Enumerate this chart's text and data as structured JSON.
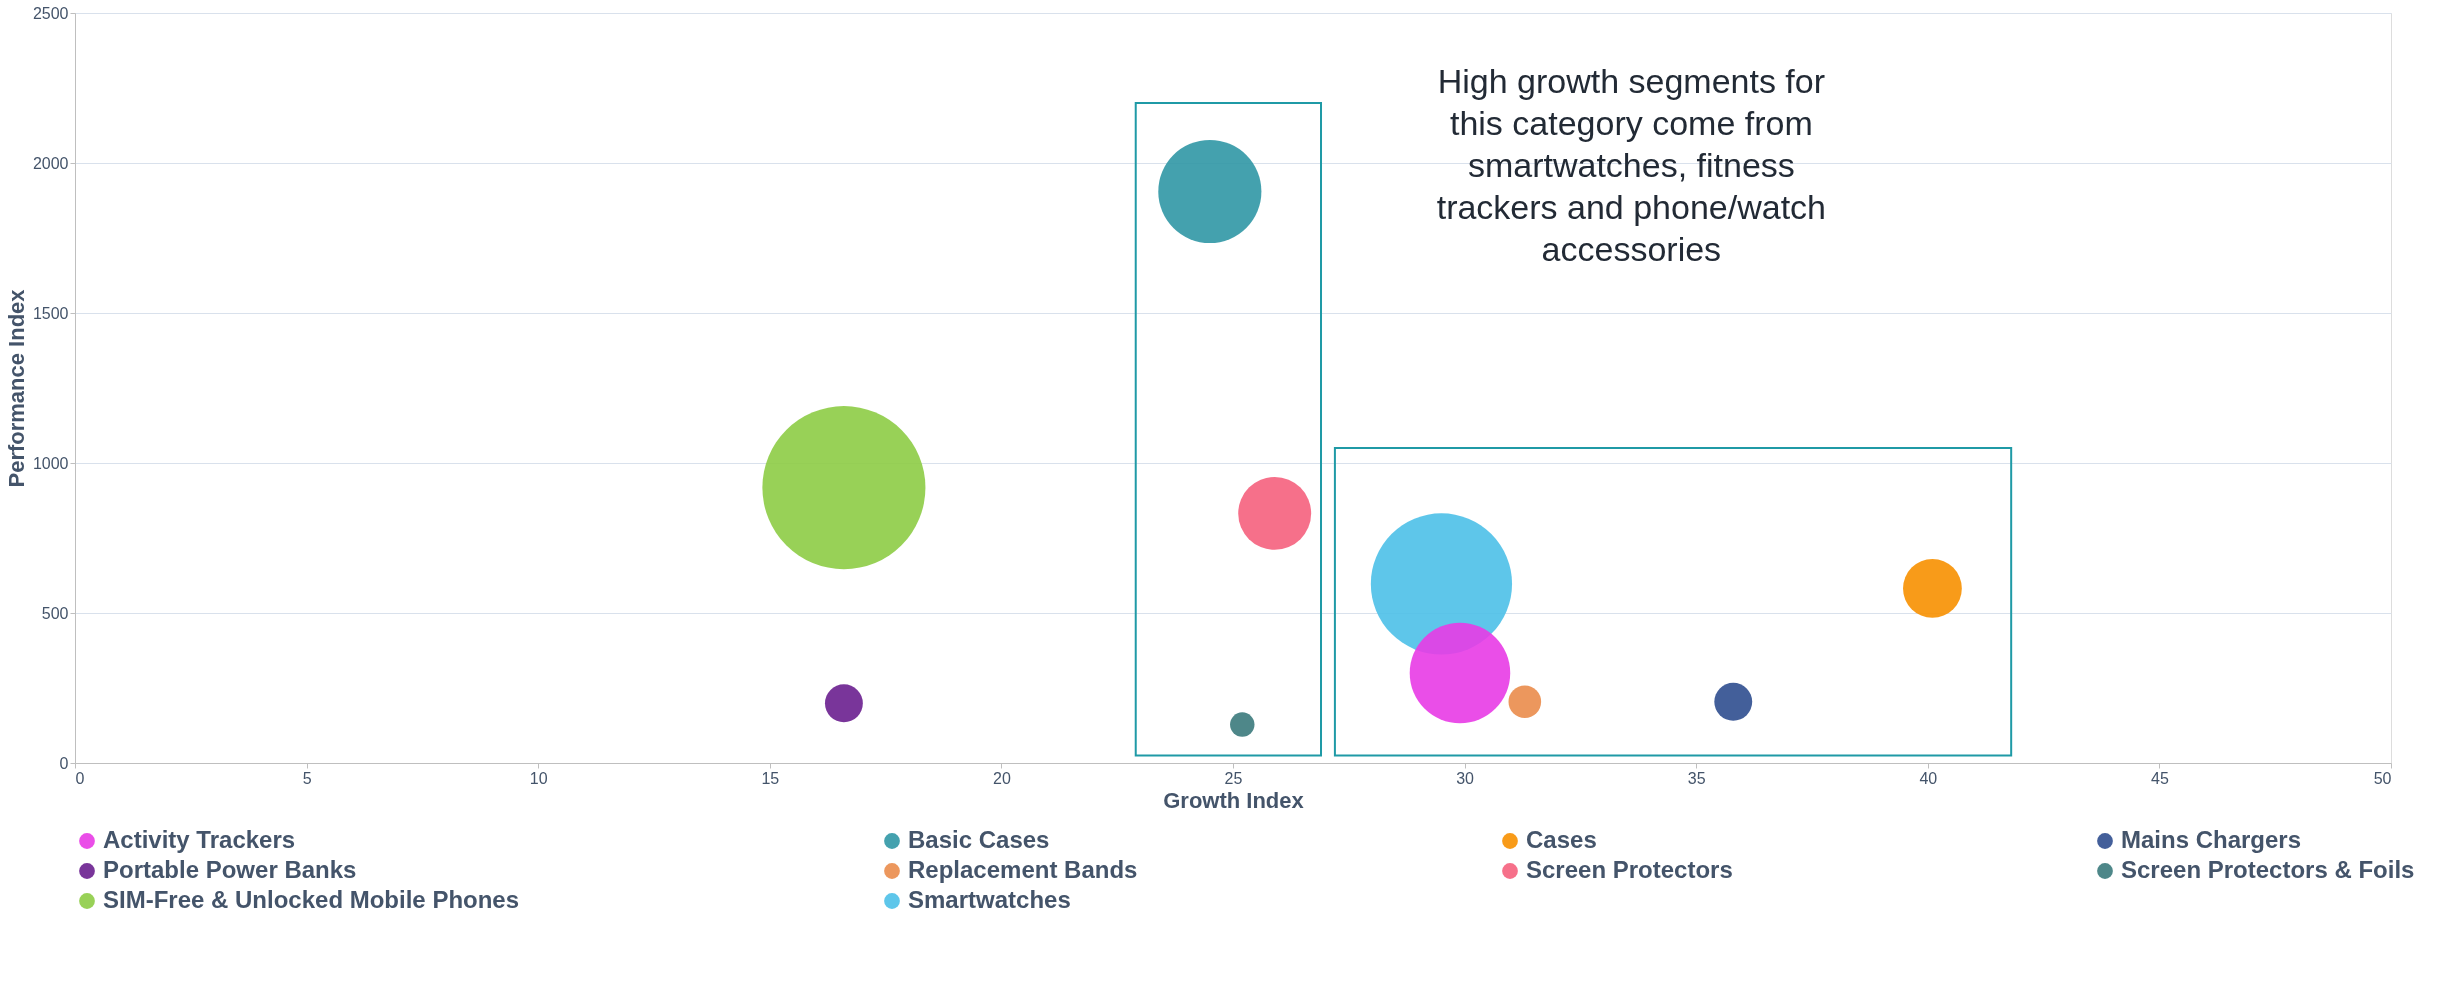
{
  "chart_data": {
    "type": "bubble",
    "xlabel": "Growth Index",
    "ylabel": "Performance Index",
    "xlim": [
      0,
      50
    ],
    "xticks": [
      0,
      5,
      10,
      15,
      20,
      25,
      30,
      35,
      40,
      45,
      50
    ],
    "ylim": [
      0,
      2500
    ],
    "yticks": [
      0,
      500,
      1000,
      1500,
      2000,
      2500
    ],
    "grid": "y",
    "legend": "bottom",
    "marker": "circle",
    "annotations": [
      "High growth segments for this category come from smartwatches, fitness trackers and phone/watch accessories"
    ],
    "series": [
      {
        "name": "Activity Trackers",
        "color": "#e83be6",
        "x": [
          29.9
        ],
        "values": [
          300
        ],
        "sizes": [
          0.38
        ]
      },
      {
        "name": "Basic Cases",
        "color": "#3097a5",
        "x": [
          24.5
        ],
        "values": [
          1905
        ],
        "sizes": [
          0.4
        ]
      },
      {
        "name": "Cases",
        "color": "#f79000",
        "x": [
          40.1
        ],
        "values": [
          582
        ],
        "sizes": [
          0.13
        ]
      },
      {
        "name": "Mains Chargers",
        "color": "#2f4e8f",
        "x": [
          35.8
        ],
        "values": [
          204
        ],
        "sizes": [
          0.054
        ]
      },
      {
        "name": "Portable Power Banks",
        "color": "#6a1f8f",
        "x": [
          16.6
        ],
        "values": [
          199
        ],
        "sizes": [
          0.054
        ]
      },
      {
        "name": "Replacement Bands",
        "color": "#ea8c4b",
        "x": [
          31.3
        ],
        "values": [
          204
        ],
        "sizes": [
          0.04
        ]
      },
      {
        "name": "Screen Protectors",
        "color": "#f5607d",
        "x": [
          25.9
        ],
        "values": [
          832
        ],
        "sizes": [
          0.2
        ]
      },
      {
        "name": "Screen Protectors & Foils",
        "color": "#3b7a7c",
        "x": [
          25.2
        ],
        "values": [
          128
        ],
        "sizes": [
          0.0225
        ]
      },
      {
        "name": "SIM-Free & Unlocked Mobile Phones",
        "color": "#8dcc45",
        "x": [
          16.6
        ],
        "values": [
          918
        ],
        "sizes": [
          1
        ]
      },
      {
        "name": "Smartwatches",
        "color": "#4cc0e8",
        "x": [
          29.5
        ],
        "values": [
          597
        ],
        "sizes": [
          0.75
        ]
      }
    ]
  }
}
